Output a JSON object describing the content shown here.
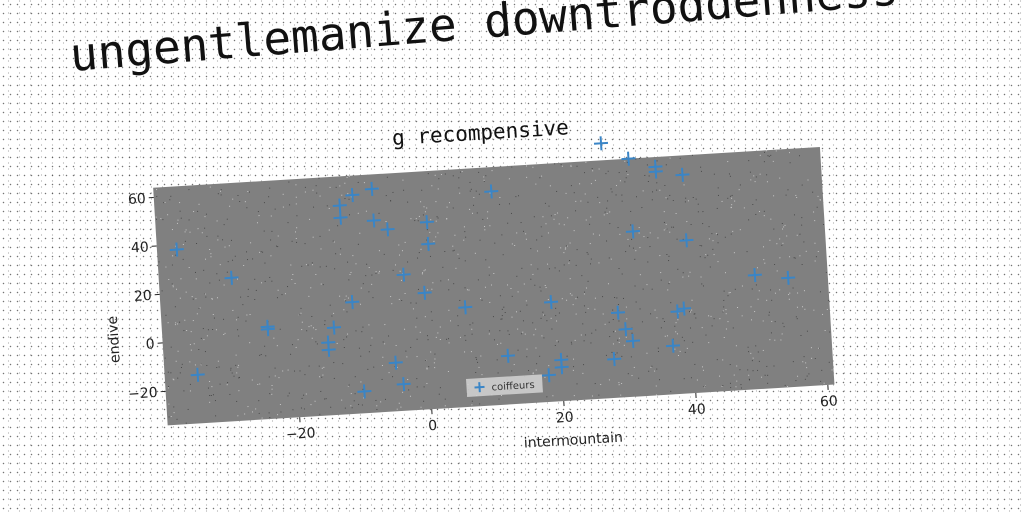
{
  "headline": "ungentlemanize downtroddenness",
  "chart_data": {
    "type": "scatter",
    "title": "g recompensive",
    "xlabel": "intermountain",
    "ylabel": "endive",
    "xlim": [
      -40,
      61
    ],
    "ylim": [
      -34,
      64
    ],
    "xticks": [
      -20,
      0,
      20,
      40,
      60
    ],
    "yticks": [
      -20,
      0,
      20,
      40,
      60
    ],
    "xtick_labels": [
      "−20",
      "0",
      "20",
      "40",
      "60"
    ],
    "ytick_labels": [
      "−20",
      "0",
      "20",
      "40",
      "60"
    ],
    "grid": false,
    "legend_position": "lower-center",
    "series": [
      {
        "name": "coiffeurs",
        "marker": "plus",
        "color": "#3a85c6",
        "points": [
          [
            -37,
            38
          ],
          [
            -35,
            -14
          ],
          [
            -29,
            25
          ],
          [
            -24,
            4
          ],
          [
            -24,
            3
          ],
          [
            -15,
            -4
          ],
          [
            -15,
            -7
          ],
          [
            -14,
            2
          ],
          [
            -12,
            52
          ],
          [
            -12,
            47
          ],
          [
            -11,
            12
          ],
          [
            -10,
            56
          ],
          [
            -10,
            -25
          ],
          [
            -7,
            58
          ],
          [
            -7,
            45
          ],
          [
            -5,
            41
          ],
          [
            -5,
            -14
          ],
          [
            -4,
            -23
          ],
          [
            -3,
            22
          ],
          [
            0,
            14
          ],
          [
            1,
            43
          ],
          [
            1,
            34
          ],
          [
            6,
            7
          ],
          [
            11,
            54
          ],
          [
            12,
            -14
          ],
          [
            18,
            -23
          ],
          [
            19,
            7
          ],
          [
            20,
            -17
          ],
          [
            20,
            -20
          ],
          [
            28,
            71
          ],
          [
            28,
            -18
          ],
          [
            29,
            1
          ],
          [
            30,
            -6
          ],
          [
            31,
            -11
          ],
          [
            32,
            64
          ],
          [
            32,
            34
          ],
          [
            36,
            60
          ],
          [
            36,
            58
          ],
          [
            37,
            -14
          ],
          [
            38,
            0
          ],
          [
            39,
            1
          ],
          [
            40,
            29
          ],
          [
            40,
            56
          ],
          [
            50,
            13
          ],
          [
            55,
            11
          ]
        ]
      }
    ]
  },
  "colors": {
    "plot_background": "#808080",
    "marker": "#3a85c6"
  }
}
